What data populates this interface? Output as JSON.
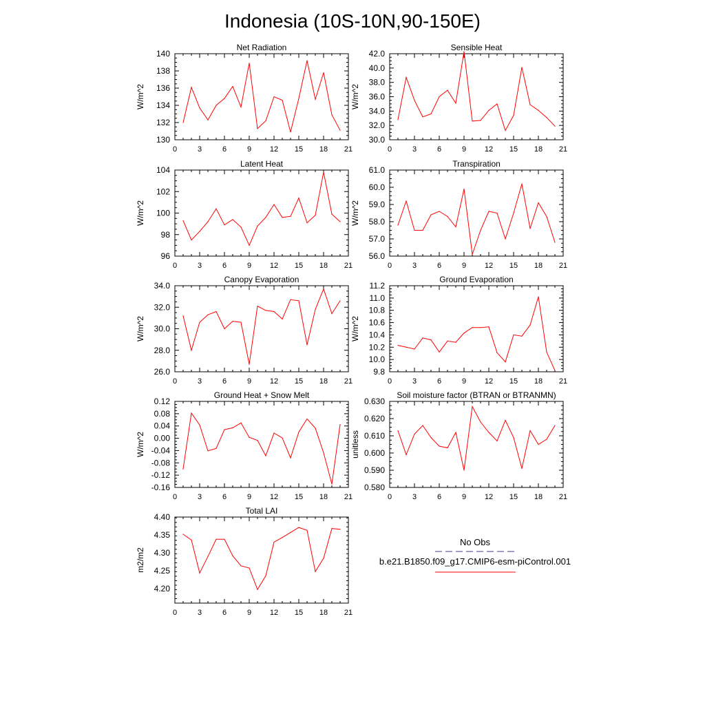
{
  "title": "Indonesia (10S-10N,90-150E)",
  "colors": {
    "model_line": "#ff0000",
    "obs_line": "#3c3c8c",
    "axes": "#000000"
  },
  "legend": {
    "obs_label": "No Obs",
    "model_label": "b.e21.B1850.f09_g17.CMIP6-esm-piControl.001"
  },
  "chart_data": [
    {
      "type": "line",
      "title": "Net Radiation",
      "ylabel": "W/m^2",
      "xlim": [
        0,
        21
      ],
      "ylim": [
        130,
        140
      ],
      "xticks": [
        0,
        3,
        6,
        9,
        12,
        15,
        18,
        21
      ],
      "yticks": [
        130,
        132,
        134,
        136,
        138,
        140
      ],
      "ytick_labels": [
        "130",
        "132",
        "134",
        "136",
        "138",
        "140"
      ],
      "x": [
        1,
        2,
        3,
        4,
        5,
        6,
        7,
        8,
        9,
        10,
        11,
        12,
        13,
        14,
        15,
        16,
        17,
        18,
        19,
        20
      ],
      "series": [
        {
          "values": [
            132.0,
            136.1,
            133.7,
            132.3,
            134.0,
            134.8,
            136.2,
            133.8,
            138.9,
            131.3,
            132.2,
            135.0,
            134.6,
            130.9,
            134.8,
            139.2,
            134.7,
            137.8,
            132.9,
            131.1
          ]
        }
      ]
    },
    {
      "type": "line",
      "title": "Sensible Heat",
      "ylabel": "W/m^2",
      "xlim": [
        0,
        21
      ],
      "ylim": [
        30,
        42
      ],
      "xticks": [
        0,
        3,
        6,
        9,
        12,
        15,
        18,
        21
      ],
      "yticks": [
        30,
        32,
        34,
        36,
        38,
        40,
        42
      ],
      "ytick_labels": [
        "30.0",
        "32.0",
        "34.0",
        "36.0",
        "38.0",
        "40.0",
        "42.0"
      ],
      "x": [
        1,
        2,
        3,
        4,
        5,
        6,
        7,
        8,
        9,
        10,
        11,
        12,
        13,
        14,
        15,
        16,
        17,
        18,
        19,
        20
      ],
      "series": [
        {
          "values": [
            32.8,
            38.7,
            35.5,
            33.2,
            33.6,
            36.0,
            36.9,
            35.1,
            42.3,
            32.6,
            32.7,
            34.1,
            35.0,
            31.3,
            33.4,
            40.1,
            34.9,
            34.1,
            33.1,
            31.9
          ]
        }
      ]
    },
    {
      "type": "line",
      "title": "Latent Heat",
      "ylabel": "W/m^2",
      "xlim": [
        0,
        21
      ],
      "ylim": [
        96,
        104
      ],
      "xticks": [
        0,
        3,
        6,
        9,
        12,
        15,
        18,
        21
      ],
      "yticks": [
        96,
        98,
        100,
        102,
        104
      ],
      "ytick_labels": [
        "96",
        "98",
        "100",
        "102",
        "104"
      ],
      "x": [
        1,
        2,
        3,
        4,
        5,
        6,
        7,
        8,
        9,
        10,
        11,
        12,
        13,
        14,
        15,
        16,
        17,
        18,
        19,
        20
      ],
      "series": [
        {
          "values": [
            99.3,
            97.5,
            98.3,
            99.2,
            100.4,
            98.9,
            99.4,
            98.7,
            97.0,
            98.8,
            99.6,
            100.8,
            99.6,
            99.7,
            101.4,
            99.1,
            99.8,
            103.8,
            99.9,
            99.2
          ]
        }
      ]
    },
    {
      "type": "line",
      "title": "Transpiration",
      "ylabel": "W/m^2",
      "xlim": [
        0,
        21
      ],
      "ylim": [
        56,
        61
      ],
      "xticks": [
        0,
        3,
        6,
        9,
        12,
        15,
        18,
        21
      ],
      "yticks": [
        56,
        57,
        58,
        59,
        60,
        61
      ],
      "ytick_labels": [
        "56.0",
        "57.0",
        "58.0",
        "59.0",
        "60.0",
        "61.0"
      ],
      "x": [
        1,
        2,
        3,
        4,
        5,
        6,
        7,
        8,
        9,
        10,
        11,
        12,
        13,
        14,
        15,
        16,
        17,
        18,
        19,
        20
      ],
      "series": [
        {
          "values": [
            57.8,
            59.2,
            57.5,
            57.5,
            58.4,
            58.6,
            58.3,
            57.7,
            59.9,
            56.1,
            57.5,
            58.6,
            58.5,
            57.0,
            58.5,
            60.2,
            57.6,
            59.1,
            58.3,
            56.8
          ]
        }
      ]
    },
    {
      "type": "line",
      "title": "Canopy Evaporation",
      "ylabel": "W/m^2",
      "xlim": [
        0,
        21
      ],
      "ylim": [
        26,
        34
      ],
      "xticks": [
        0,
        3,
        6,
        9,
        12,
        15,
        18,
        21
      ],
      "yticks": [
        26,
        28,
        30,
        32,
        34
      ],
      "ytick_labels": [
        "26.0",
        "28.0",
        "30.0",
        "32.0",
        "34.0"
      ],
      "x": [
        1,
        2,
        3,
        4,
        5,
        6,
        7,
        8,
        9,
        10,
        11,
        12,
        13,
        14,
        15,
        16,
        17,
        18,
        19,
        20
      ],
      "series": [
        {
          "values": [
            31.2,
            28.0,
            30.6,
            31.3,
            31.6,
            30.0,
            30.7,
            30.6,
            26.7,
            32.1,
            31.7,
            31.6,
            30.9,
            32.7,
            32.6,
            28.5,
            31.8,
            33.7,
            31.4,
            32.6
          ]
        }
      ]
    },
    {
      "type": "line",
      "title": "Ground Evaporation",
      "ylabel": "W/m^2",
      "xlim": [
        0,
        21
      ],
      "ylim": [
        9.8,
        11.2
      ],
      "xticks": [
        0,
        3,
        6,
        9,
        12,
        15,
        18,
        21
      ],
      "yticks": [
        9.8,
        10.0,
        10.2,
        10.4,
        10.6,
        10.8,
        11.0,
        11.2
      ],
      "ytick_labels": [
        "9.8",
        "10.0",
        "10.2",
        "10.4",
        "10.6",
        "10.8",
        "11.0",
        "11.2"
      ],
      "x": [
        1,
        2,
        3,
        4,
        5,
        6,
        7,
        8,
        9,
        10,
        11,
        12,
        13,
        14,
        15,
        16,
        17,
        18,
        19,
        20
      ],
      "series": [
        {
          "values": [
            10.23,
            10.2,
            10.17,
            10.35,
            10.32,
            10.12,
            10.3,
            10.28,
            10.43,
            10.52,
            10.52,
            10.53,
            10.11,
            9.96,
            10.4,
            10.38,
            10.56,
            11.02,
            10.12,
            9.82
          ]
        }
      ]
    },
    {
      "type": "line",
      "title": "Ground Heat + Snow Melt",
      "ylabel": "W/m^2",
      "xlim": [
        0,
        21
      ],
      "ylim": [
        -0.16,
        0.12
      ],
      "xticks": [
        0,
        3,
        6,
        9,
        12,
        15,
        18,
        21
      ],
      "yticks": [
        -0.16,
        -0.12,
        -0.08,
        -0.04,
        0.0,
        0.04,
        0.08,
        0.12
      ],
      "ytick_labels": [
        "-0.16",
        "-0.12",
        "-0.08",
        "-0.04",
        "0.00",
        "0.04",
        "0.08",
        "0.12"
      ],
      "x": [
        1,
        2,
        3,
        4,
        5,
        6,
        7,
        8,
        9,
        10,
        11,
        12,
        13,
        14,
        15,
        16,
        17,
        18,
        19,
        20
      ],
      "series": [
        {
          "values": [
            -0.1,
            0.082,
            0.043,
            -0.041,
            -0.033,
            0.028,
            0.034,
            0.05,
            0.003,
            -0.007,
            -0.057,
            0.017,
            0.001,
            -0.064,
            0.02,
            0.063,
            0.033,
            -0.047,
            -0.149,
            0.045
          ]
        }
      ]
    },
    {
      "type": "line",
      "title": "Soil moisture factor (BTRAN or BTRANMN)",
      "ylabel": "unitless",
      "xlim": [
        0,
        21
      ],
      "ylim": [
        0.58,
        0.63
      ],
      "xticks": [
        0,
        3,
        6,
        9,
        12,
        15,
        18,
        21
      ],
      "yticks": [
        0.58,
        0.59,
        0.6,
        0.61,
        0.62,
        0.63
      ],
      "ytick_labels": [
        "0.580",
        "0.590",
        "0.600",
        "0.610",
        "0.620",
        "0.630"
      ],
      "x": [
        1,
        2,
        3,
        4,
        5,
        6,
        7,
        8,
        9,
        10,
        11,
        12,
        13,
        14,
        15,
        16,
        17,
        18,
        19,
        20
      ],
      "series": [
        {
          "values": [
            0.613,
            0.599,
            0.611,
            0.616,
            0.609,
            0.604,
            0.603,
            0.612,
            0.59,
            0.627,
            0.618,
            0.612,
            0.607,
            0.619,
            0.609,
            0.591,
            0.613,
            0.605,
            0.608,
            0.616
          ]
        }
      ]
    },
    {
      "type": "line",
      "title": "Total LAI",
      "ylabel": "m2/m2",
      "xlim": [
        0,
        21
      ],
      "ylim": [
        4.16,
        4.4
      ],
      "xticks": [
        0,
        3,
        6,
        9,
        12,
        15,
        18,
        21
      ],
      "yticks": [
        4.2,
        4.25,
        4.3,
        4.35,
        4.4
      ],
      "ytick_labels": [
        "4.20",
        "4.25",
        "4.30",
        "4.35",
        "4.40"
      ],
      "x": [
        1,
        2,
        3,
        4,
        5,
        6,
        7,
        8,
        9,
        10,
        11,
        12,
        13,
        14,
        15,
        16,
        17,
        18,
        19,
        20
      ],
      "series": [
        {
          "values": [
            4.352,
            4.336,
            4.244,
            4.29,
            4.338,
            4.338,
            4.292,
            4.264,
            4.258,
            4.198,
            4.236,
            4.33,
            4.343,
            4.357,
            4.371,
            4.363,
            4.248,
            4.285,
            4.368,
            4.366
          ]
        }
      ]
    }
  ]
}
